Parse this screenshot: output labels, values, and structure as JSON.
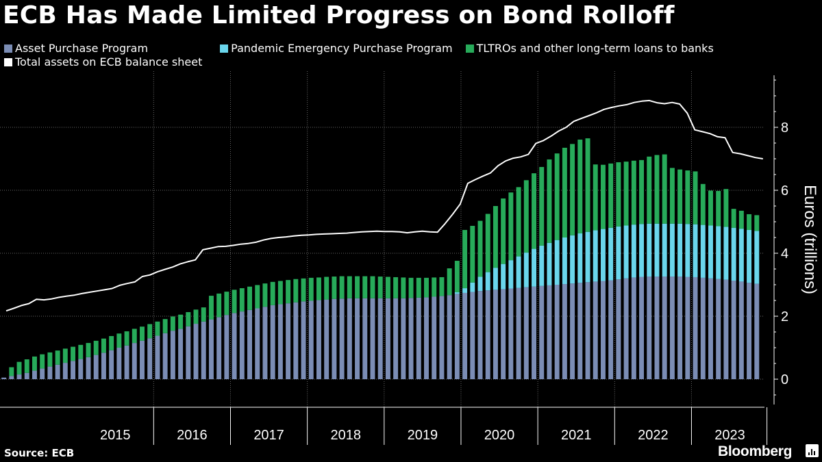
{
  "header": {
    "title": "ECB Has Made Limited Progress on Bond Rolloff"
  },
  "footer": {
    "source": "Source: ECB",
    "brand": "Bloomberg"
  },
  "chart_data": {
    "type": "bar",
    "title": "ECB Has Made Limited Progress on Bond Rolloff",
    "ylabel": "Euros (trillions)",
    "xlabel": "",
    "ylim": [
      -0.8,
      9.6
    ],
    "yticks": [
      0,
      2,
      4,
      6,
      8
    ],
    "xlim": [
      2014.0,
      2023.95
    ],
    "year_labels": [
      "2015",
      "2016",
      "2017",
      "2018",
      "2019",
      "2020",
      "2021",
      "2022",
      "2023"
    ],
    "grid": true,
    "legend": "top",
    "stacked": true,
    "series": [
      {
        "name": "Asset Purchase Program",
        "color": "#7b8db5",
        "values": [
          0.05,
          0.1,
          0.15,
          0.2,
          0.27,
          0.34,
          0.4,
          0.46,
          0.52,
          0.58,
          0.64,
          0.7,
          0.77,
          0.84,
          0.92,
          1.0,
          1.07,
          1.15,
          1.22,
          1.3,
          1.38,
          1.46,
          1.54,
          1.6,
          1.68,
          1.76,
          1.83,
          1.9,
          1.97,
          2.04,
          2.1,
          2.15,
          2.2,
          2.25,
          2.3,
          2.35,
          2.38,
          2.41,
          2.44,
          2.47,
          2.49,
          2.51,
          2.53,
          2.55,
          2.56,
          2.57,
          2.57,
          2.57,
          2.57,
          2.57,
          2.57,
          2.57,
          2.57,
          2.58,
          2.59,
          2.6,
          2.62,
          2.64,
          2.67,
          2.71,
          2.74,
          2.77,
          2.8,
          2.82,
          2.84,
          2.86,
          2.88,
          2.9,
          2.92,
          2.94,
          2.96,
          2.98,
          3.0,
          3.02,
          3.04,
          3.06,
          3.08,
          3.1,
          3.12,
          3.14,
          3.17,
          3.2,
          3.23,
          3.25,
          3.26,
          3.26,
          3.26,
          3.26,
          3.26,
          3.25,
          3.24,
          3.22,
          3.2,
          3.18,
          3.16,
          3.13,
          3.1,
          3.06,
          3.03
        ]
      },
      {
        "name": "Pandemic Emergency Purchase Program",
        "color": "#6ad6ec",
        "values": [
          0,
          0,
          0,
          0,
          0,
          0,
          0,
          0,
          0,
          0,
          0,
          0,
          0,
          0,
          0,
          0,
          0,
          0,
          0,
          0,
          0,
          0,
          0,
          0,
          0,
          0,
          0,
          0,
          0,
          0,
          0,
          0,
          0,
          0,
          0,
          0,
          0,
          0,
          0,
          0,
          0,
          0,
          0,
          0,
          0,
          0,
          0,
          0,
          0,
          0,
          0,
          0,
          0,
          0,
          0,
          0,
          0,
          0,
          0,
          0.05,
          0.15,
          0.3,
          0.45,
          0.58,
          0.7,
          0.8,
          0.9,
          1.0,
          1.1,
          1.2,
          1.28,
          1.35,
          1.42,
          1.48,
          1.53,
          1.57,
          1.6,
          1.63,
          1.65,
          1.67,
          1.68,
          1.68,
          1.68,
          1.68,
          1.68,
          1.68,
          1.68,
          1.68,
          1.68,
          1.68,
          1.68,
          1.68,
          1.68,
          1.68,
          1.68,
          1.68,
          1.68,
          1.68,
          1.68
        ]
      },
      {
        "name": "TLTROs and other long-term loans to banks",
        "color": "#27ab5a",
        "values": [
          0.0,
          0.28,
          0.4,
          0.43,
          0.45,
          0.45,
          0.45,
          0.45,
          0.45,
          0.45,
          0.45,
          0.45,
          0.45,
          0.45,
          0.45,
          0.45,
          0.45,
          0.45,
          0.45,
          0.45,
          0.45,
          0.45,
          0.45,
          0.45,
          0.45,
          0.45,
          0.45,
          0.75,
          0.75,
          0.74,
          0.74,
          0.74,
          0.74,
          0.74,
          0.74,
          0.74,
          0.74,
          0.74,
          0.74,
          0.73,
          0.73,
          0.72,
          0.72,
          0.71,
          0.71,
          0.7,
          0.7,
          0.7,
          0.7,
          0.69,
          0.68,
          0.67,
          0.66,
          0.64,
          0.63,
          0.62,
          0.61,
          0.6,
          0.85,
          1.0,
          1.85,
          1.8,
          1.78,
          1.85,
          1.96,
          2.08,
          2.15,
          2.2,
          2.3,
          2.4,
          2.5,
          2.65,
          2.75,
          2.85,
          2.9,
          2.98,
          2.97,
          2.09,
          2.04,
          2.04,
          2.04,
          2.03,
          2.03,
          2.03,
          2.13,
          2.18,
          2.2,
          1.77,
          1.72,
          1.7,
          1.68,
          1.3,
          1.11,
          1.12,
          1.2,
          0.6,
          0.57,
          0.5,
          0.5
        ]
      },
      {
        "name": "Total assets on ECB balance sheet",
        "type": "line",
        "color": "#ffffff",
        "values": [
          2.17,
          2.25,
          2.34,
          2.4,
          2.54,
          2.52,
          2.55,
          2.6,
          2.64,
          2.67,
          2.72,
          2.76,
          2.8,
          2.84,
          2.88,
          2.98,
          3.04,
          3.09,
          3.26,
          3.31,
          3.41,
          3.49,
          3.56,
          3.66,
          3.73,
          3.79,
          4.11,
          4.16,
          4.21,
          4.22,
          4.25,
          4.29,
          4.31,
          4.35,
          4.42,
          4.47,
          4.5,
          4.52,
          4.55,
          4.57,
          4.58,
          4.6,
          4.61,
          4.62,
          4.63,
          4.64,
          4.66,
          4.68,
          4.69,
          4.7,
          4.69,
          4.69,
          4.68,
          4.65,
          4.68,
          4.7,
          4.68,
          4.67,
          4.94,
          5.24,
          5.56,
          6.22,
          6.34,
          6.45,
          6.55,
          6.78,
          6.93,
          7.02,
          7.06,
          7.14,
          7.49,
          7.58,
          7.72,
          7.88,
          8.0,
          8.19,
          8.28,
          8.37,
          8.46,
          8.57,
          8.63,
          8.68,
          8.72,
          8.79,
          8.83,
          8.85,
          8.78,
          8.75,
          8.79,
          8.74,
          8.45,
          7.92,
          7.86,
          7.8,
          7.7,
          7.67,
          7.2,
          7.16,
          7.1,
          7.04,
          7.0
        ]
      }
    ]
  }
}
